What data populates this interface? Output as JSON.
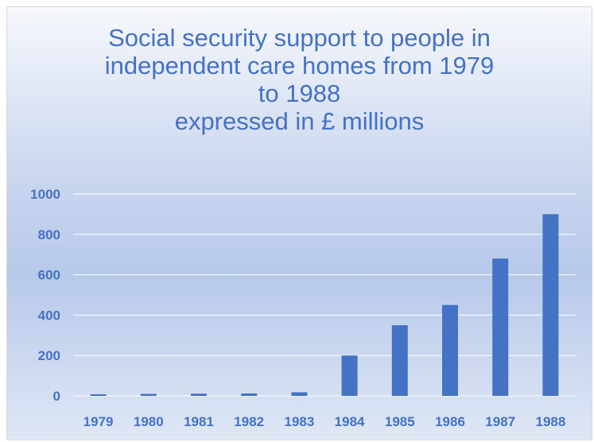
{
  "chart_data": {
    "type": "bar",
    "title_lines": [
      "Social security support to people in",
      "independent care homes from 1979",
      "to 1988",
      "expressed in £ millions"
    ],
    "categories": [
      "1979",
      "1980",
      "1981",
      "1982",
      "1983",
      "1984",
      "1985",
      "1986",
      "1987",
      "1988"
    ],
    "values": [
      8,
      10,
      11,
      12,
      18,
      200,
      350,
      450,
      680,
      900
    ],
    "ylim": [
      0,
      1000
    ],
    "y_ticks": [
      "0",
      "200",
      "400",
      "600",
      "800",
      "1000"
    ],
    "xlabel": "",
    "ylabel": "",
    "grid": true,
    "bar_color": "#4472c4",
    "text_color": "#4472c4",
    "gridline_color": "#ffffff"
  }
}
